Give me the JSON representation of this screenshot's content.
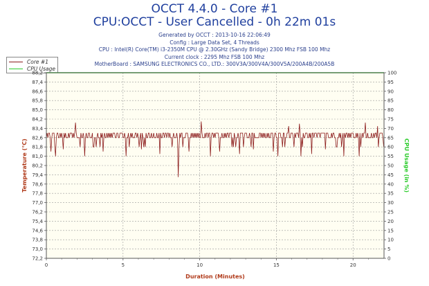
{
  "header": {
    "title": "OCCT 4.4.0 - Core #1",
    "subtitle": "CPU:OCCT - User Cancelled - 0h 22m 01s",
    "generated": "Generated by OCCT : 2013-10-16 22:06:49",
    "config": "Config : Large Data Set, 4 Threads",
    "cpu": "CPU : Intel(R) Core(TM) i3-2350M CPU @ 2.30GHz (Sandy Bridge) 2300 Mhz FSB 100 Mhz",
    "clock": "Current clock : 2295 Mhz FSB 100 Mhz",
    "motherboard": "MotherBoard : SAMSUNG ELECTRONICS CO., LTD.: 300V3A/300V4A/300V5A/200A4B/200A5B"
  },
  "legend": {
    "items": [
      {
        "label": "Core #1",
        "color": "#8b1a1a"
      },
      {
        "label": "CPU Usage",
        "color": "#2ecc2e"
      }
    ]
  },
  "chart_data": {
    "type": "line",
    "xlabel": "Duration (Minutes)",
    "ylabel": "Temperature (°C)",
    "y2label": "CPU Usage (in %)",
    "xlim": [
      0,
      22.02
    ],
    "ylim": [
      72.2,
      88.2
    ],
    "y2lim": [
      0,
      100
    ],
    "x_ticks": [
      0,
      5,
      10,
      15,
      20
    ],
    "y_ticks": [
      "72,2",
      "73,0",
      "73,8",
      "74,6",
      "75,4",
      "76,2",
      "77,0",
      "77,8",
      "78,6",
      "79,4",
      "80,2",
      "81,0",
      "81,8",
      "82,6",
      "83,4",
      "84,2",
      "85,0",
      "85,8",
      "86,6",
      "87,4",
      "88,2"
    ],
    "y2_ticks": [
      0,
      5,
      10,
      15,
      20,
      25,
      30,
      35,
      40,
      45,
      50,
      55,
      60,
      65,
      70,
      75,
      80,
      85,
      90,
      95,
      100
    ],
    "series": [
      {
        "name": "Core #1",
        "color": "#8b1a1a",
        "axis": "left",
        "baseline": [
          82.6,
          83.0
        ],
        "low_dips": [
          [
            0.3,
            81.4
          ],
          [
            0.6,
            81.0
          ],
          [
            1.1,
            81.6
          ],
          [
            1.9,
            81.2
          ],
          [
            2.5,
            81.0
          ],
          [
            3.7,
            81.4
          ],
          [
            5.2,
            81.0
          ],
          [
            6.2,
            81.6
          ],
          [
            7.4,
            81.2
          ],
          [
            8.6,
            79.2
          ],
          [
            9.3,
            81.4
          ],
          [
            10.7,
            81.0
          ],
          [
            11.3,
            81.4
          ],
          [
            12.6,
            81.2
          ],
          [
            13.5,
            81.6
          ],
          [
            14.8,
            81.4
          ],
          [
            15.1,
            81.0
          ],
          [
            16.6,
            81.0
          ],
          [
            17.3,
            81.2
          ],
          [
            18.2,
            81.6
          ],
          [
            19.4,
            81.0
          ],
          [
            20.4,
            81.0
          ],
          [
            21.6,
            81.0
          ]
        ],
        "high_spikes": [
          [
            1.9,
            83.9
          ],
          [
            10.1,
            84.0
          ],
          [
            15.8,
            83.6
          ],
          [
            16.5,
            83.8
          ],
          [
            20.8,
            83.9
          ],
          [
            21.6,
            83.6
          ]
        ]
      },
      {
        "name": "CPU Usage",
        "color": "#2ecc2e",
        "axis": "right",
        "points": [
          [
            0,
            100
          ],
          [
            22.02,
            100
          ]
        ]
      }
    ]
  }
}
